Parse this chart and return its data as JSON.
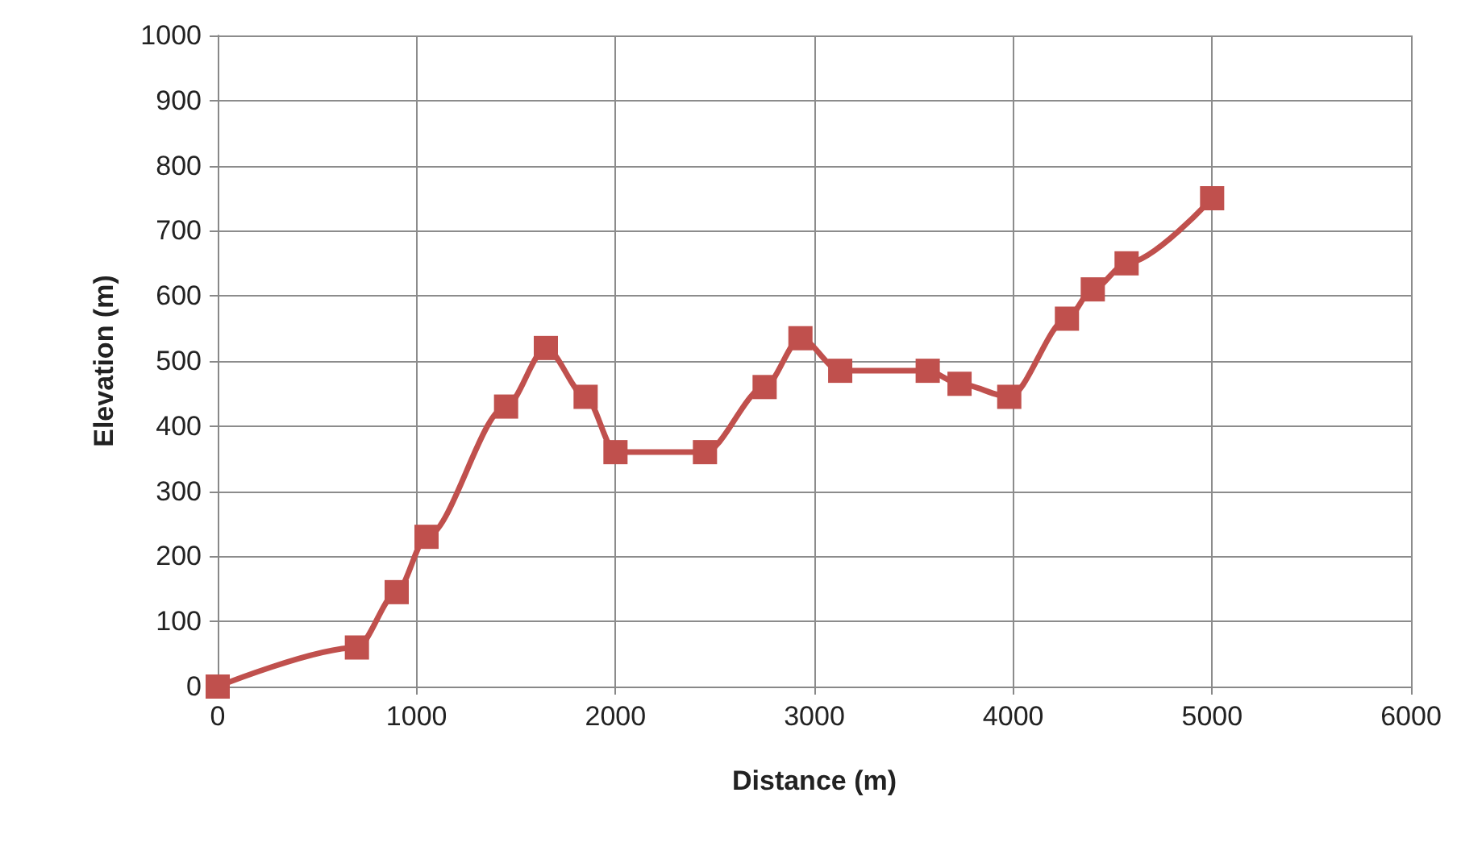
{
  "chart_data": {
    "type": "line",
    "xlabel": "Distance (m)",
    "ylabel": "Elevation (m)",
    "x": [
      0,
      700,
      900,
      1050,
      1450,
      1650,
      1850,
      2000,
      2450,
      2750,
      2930,
      3130,
      3570,
      3730,
      3980,
      4270,
      4400,
      4570,
      5000
    ],
    "series": [
      {
        "color": "#c0504d",
        "values": [
          0,
          60,
          145,
          230,
          430,
          520,
          445,
          360,
          360,
          460,
          535,
          485,
          485,
          465,
          445,
          565,
          610,
          650,
          750
        ]
      }
    ],
    "xlim": [
      0,
      6000
    ],
    "xticks": [
      0,
      1000,
      2000,
      3000,
      4000,
      5000,
      6000
    ],
    "ylim": [
      0,
      1000
    ],
    "yticks": [
      0,
      100,
      200,
      300,
      400,
      500,
      600,
      700,
      800,
      900,
      1000
    ],
    "grid": true,
    "marker": "square",
    "line_style": "solid"
  }
}
